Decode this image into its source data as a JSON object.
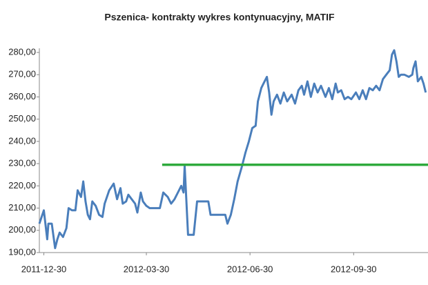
{
  "chart_data": {
    "type": "line",
    "title": "Pszenica- kontrakty wykres kontynuacyjny, MATIF",
    "xlim": [
      "2011-12-26",
      "2012-12-05"
    ],
    "xticks": [
      "2011-12-30",
      "2012-03-30",
      "2012-06-30",
      "2012-09-30"
    ],
    "ylim": [
      190,
      280
    ],
    "yticks": [
      {
        "value": 190,
        "label": "190,00"
      },
      {
        "value": 200,
        "label": "200,00"
      },
      {
        "value": 210,
        "label": "210,00"
      },
      {
        "value": 220,
        "label": "220,00"
      },
      {
        "value": 230,
        "label": "230,00"
      },
      {
        "value": 240,
        "label": "240,00"
      },
      {
        "value": 250,
        "label": "250,00"
      },
      {
        "value": 260,
        "label": "260,00"
      },
      {
        "value": 270,
        "label": "270,00"
      },
      {
        "value": 280,
        "label": "280,00"
      }
    ],
    "grid": false,
    "series": [
      {
        "color": "#4a7ebb",
        "x": [
          "2011-12-26",
          "2011-12-30",
          "2012-01-02",
          "2012-01-03",
          "2012-01-06",
          "2012-01-09",
          "2012-01-11",
          "2012-01-13",
          "2012-01-16",
          "2012-01-19",
          "2012-01-21",
          "2012-01-24",
          "2012-01-27",
          "2012-01-29",
          "2012-02-01",
          "2012-02-03",
          "2012-02-05",
          "2012-02-07",
          "2012-02-09",
          "2012-02-11",
          "2012-02-14",
          "2012-02-17",
          "2012-02-20",
          "2012-02-22",
          "2012-02-26",
          "2012-03-01",
          "2012-03-04",
          "2012-03-07",
          "2012-03-09",
          "2012-03-12",
          "2012-03-14",
          "2012-03-17",
          "2012-03-20",
          "2012-03-22",
          "2012-03-25",
          "2012-03-27",
          "2012-03-30",
          "2012-04-02",
          "2012-04-05",
          "2012-04-08",
          "2012-04-11",
          "2012-04-14",
          "2012-04-18",
          "2012-04-21",
          "2012-04-24",
          "2012-04-27",
          "2012-04-30",
          "2012-05-02",
          "2012-05-03",
          "2012-05-06",
          "2012-05-11",
          "2012-05-14",
          "2012-05-19",
          "2012-05-24",
          "2012-05-26",
          "2012-05-31",
          "2012-06-04",
          "2012-06-08",
          "2012-06-10",
          "2012-06-13",
          "2012-06-16",
          "2012-06-19",
          "2012-06-23",
          "2012-06-26",
          "2012-06-29",
          "2012-07-02",
          "2012-07-05",
          "2012-07-07",
          "2012-07-10",
          "2012-07-12",
          "2012-07-15",
          "2012-07-17",
          "2012-07-19",
          "2012-07-21",
          "2012-07-24",
          "2012-07-27",
          "2012-07-30",
          "2012-08-02",
          "2012-08-06",
          "2012-08-09",
          "2012-08-12",
          "2012-08-15",
          "2012-08-17",
          "2012-08-20",
          "2012-08-23",
          "2012-08-26",
          "2012-08-29",
          "2012-09-01",
          "2012-09-05",
          "2012-09-08",
          "2012-09-11",
          "2012-09-14",
          "2012-09-16",
          "2012-09-19",
          "2012-09-22",
          "2012-09-25",
          "2012-09-28",
          "2012-10-02",
          "2012-10-05",
          "2012-10-08",
          "2012-10-11",
          "2012-10-14",
          "2012-10-17",
          "2012-10-20",
          "2012-10-23",
          "2012-10-26",
          "2012-10-29",
          "2012-11-01",
          "2012-11-03",
          "2012-11-05",
          "2012-11-07",
          "2012-11-09",
          "2012-11-11",
          "2012-11-14",
          "2012-11-18",
          "2012-11-21",
          "2012-11-22",
          "2012-11-24",
          "2012-11-26",
          "2012-11-29",
          "2012-12-01",
          "2012-12-03"
        ],
        "values": [
          203,
          209,
          196,
          203,
          203,
          192,
          196,
          199,
          197,
          201,
          210,
          209,
          209,
          218,
          215,
          222,
          213,
          207,
          205,
          213,
          211,
          207,
          206,
          212,
          218,
          221,
          214,
          219,
          212,
          213,
          216,
          214,
          212,
          208,
          217,
          213,
          211,
          210,
          210,
          210,
          210,
          217,
          215,
          212,
          214,
          217,
          220,
          217,
          229,
          198,
          198,
          213,
          213,
          213,
          207,
          207,
          207,
          207,
          203,
          207,
          214,
          222,
          229,
          235,
          240,
          246,
          247,
          258,
          264,
          266,
          269,
          262,
          252,
          258,
          261,
          257,
          262,
          258,
          261,
          257,
          263,
          265,
          261,
          267,
          260,
          266,
          262,
          265,
          260,
          264,
          259,
          266,
          262,
          263,
          259,
          260,
          259,
          262,
          259,
          263,
          259,
          264,
          263,
          265,
          263,
          268,
          270,
          272,
          279,
          281,
          276,
          269,
          270,
          270,
          269,
          270,
          273,
          276,
          267,
          269,
          266,
          262
        ]
      },
      {
        "color": "#2eaa3c",
        "x": [
          "2012-04-13",
          "2012-12-05"
        ],
        "values": [
          229.5,
          229.5
        ]
      }
    ]
  }
}
